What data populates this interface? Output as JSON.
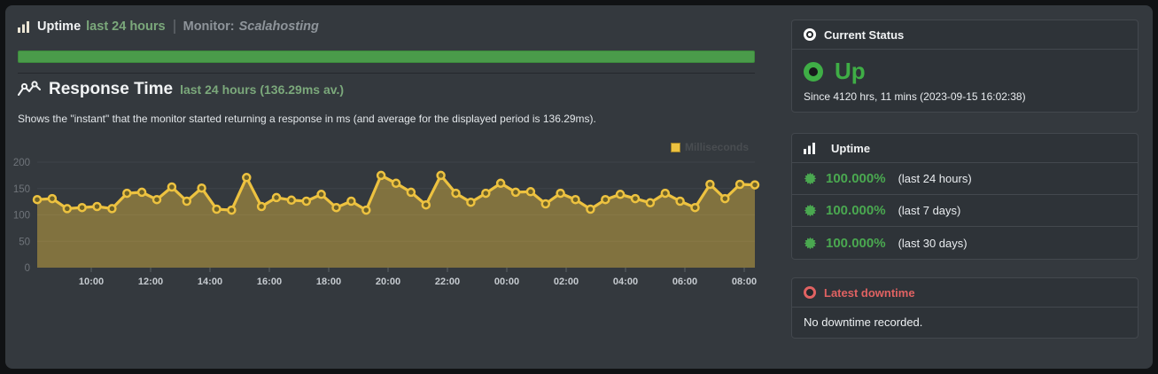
{
  "colors": {
    "panel_bg": "#34393e",
    "card_bg": "#2e3338",
    "card_border": "#43484e",
    "bar_green": "#4a9b4a",
    "green_text": "#7ba87b",
    "green_bright": "#3fae46",
    "uptime_green": "#4aa850",
    "red": "#e06262",
    "chart_yellow": "#edc240"
  },
  "header": {
    "title": "Uptime",
    "period": "last 24 hours",
    "monitor_label": "Monitor:",
    "monitor_name": "Scalahosting"
  },
  "response_time": {
    "title": "Response Time",
    "subtitle": "last 24 hours (136.29ms av.)",
    "description": "Shows the \"instant\" that the monitor started returning a response in ms (and average for the displayed period is 136.29ms)."
  },
  "chart_data": {
    "type": "area",
    "title": "Response Time last 24 hours",
    "unit": "ms",
    "average_ms": 136.29,
    "x_start": "08:15",
    "x_interval_minutes": 30,
    "x_ticks": [
      "10:00",
      "12:00",
      "14:00",
      "16:00",
      "18:00",
      "20:00",
      "22:00",
      "00:00",
      "02:00",
      "04:00",
      "06:00",
      "08:00"
    ],
    "ylim": [
      0,
      200
    ],
    "y_ticks": [
      0,
      50,
      100,
      150,
      200
    ],
    "grid": true,
    "legend": {
      "label": "Milliseconds",
      "position": "top-right"
    },
    "series": [
      {
        "name": "Milliseconds",
        "color": "#edc240",
        "fill": "rgba(237,194,64,0.42)",
        "marker_fill": "#6d6128",
        "values": [
          129,
          131,
          112,
          114,
          116,
          112,
          141,
          143,
          129,
          153,
          126,
          151,
          111,
          109,
          171,
          116,
          133,
          128,
          126,
          139,
          114,
          126,
          109,
          175,
          160,
          143,
          119,
          175,
          141,
          124,
          141,
          160,
          143,
          144,
          121,
          141,
          129,
          111,
          129,
          139,
          131,
          123,
          141,
          126,
          114,
          158,
          131,
          158,
          157
        ]
      }
    ]
  },
  "status_card": {
    "title": "Current Status",
    "status": "Up",
    "since": "Since 4120 hrs, 11 mins (2023-09-15 16:02:38)"
  },
  "uptime_card": {
    "title": "Uptime",
    "rows": [
      {
        "pct": "100.000%",
        "label": "(last 24 hours)"
      },
      {
        "pct": "100.000%",
        "label": "(last 7 days)"
      },
      {
        "pct": "100.000%",
        "label": "(last 30 days)"
      }
    ]
  },
  "downtime_card": {
    "title": "Latest downtime",
    "message": "No downtime recorded."
  }
}
